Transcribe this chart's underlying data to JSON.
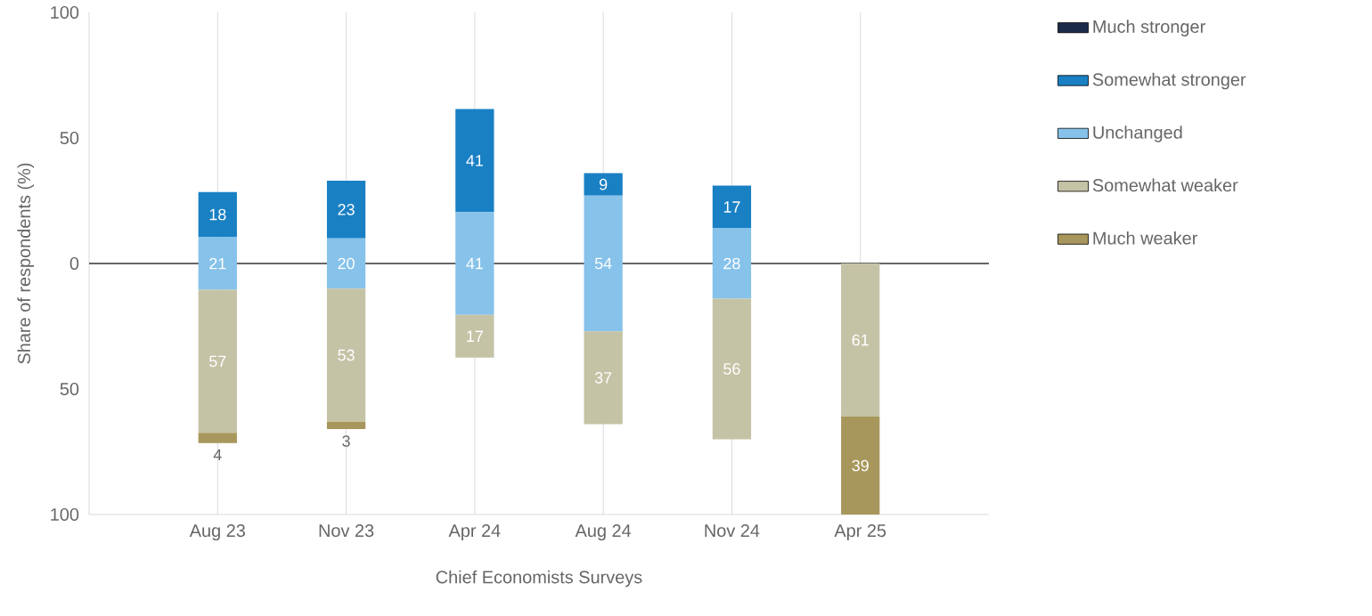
{
  "chart_data": {
    "type": "bar",
    "xlabel": "Chief Economists Surveys",
    "ylabel": "Share of respondents (%)",
    "categories": [
      "Aug 23",
      "Nov 23",
      "Apr 24",
      "Aug 24",
      "Nov 24",
      "Apr 25"
    ],
    "series": [
      {
        "name": "Much stronger",
        "color": "#1c2a4a",
        "values": [
          null,
          null,
          null,
          null,
          null,
          null
        ],
        "base": [
          null,
          null,
          null,
          null,
          null,
          null
        ]
      },
      {
        "name": "Somewhat stronger",
        "color": "#1a80c4",
        "values": [
          18,
          23,
          41,
          9,
          17,
          null
        ],
        "base": [
          10.5,
          10,
          20.5,
          27,
          14,
          null
        ],
        "value_labels": [
          "18",
          "23",
          "41",
          "9",
          "17",
          null
        ]
      },
      {
        "name": "Unchanged",
        "color": "#86c2ea",
        "values": [
          21,
          20,
          41,
          54,
          28,
          null
        ],
        "base": [
          -10.5,
          -10,
          -20.5,
          -27,
          -14,
          null
        ],
        "value_labels": [
          "21",
          "20",
          "41",
          "54",
          "28",
          null
        ]
      },
      {
        "name": "Somewhat weaker",
        "color": "#c5c3a6",
        "values": [
          57,
          53,
          17,
          37,
          56,
          61
        ],
        "base": [
          -67.5,
          -63,
          -37.5,
          -64,
          -70,
          -61
        ],
        "value_labels": [
          "57",
          "53",
          "17",
          "37",
          "56",
          "61"
        ]
      },
      {
        "name": "Much weaker",
        "color": "#a8975c",
        "values": [
          4,
          3,
          null,
          null,
          null,
          39
        ],
        "base": [
          -71.5,
          -66,
          null,
          null,
          null,
          -100
        ],
        "value_labels": [
          "4",
          "3",
          null,
          null,
          null,
          "39"
        ]
      }
    ],
    "ylim": [
      -100,
      100
    ],
    "yticks": [
      100,
      50,
      0,
      {
        "value": -50,
        "label": "50"
      },
      {
        "value": -100,
        "label": "100"
      }
    ],
    "grid": "x",
    "legend": "right",
    "ref_lines": [
      {
        "axis": "y",
        "value": 0,
        "color": "#333333"
      }
    ]
  }
}
